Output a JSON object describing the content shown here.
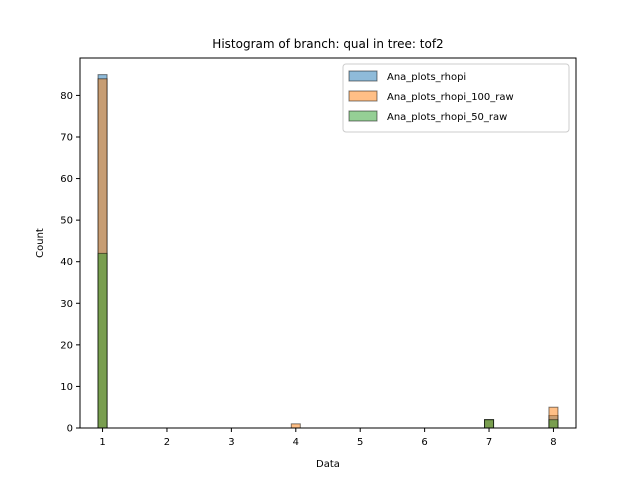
{
  "chart_data": {
    "type": "bar",
    "title": "Histogram of branch: qual in tree: tof2",
    "xlabel": "Data",
    "ylabel": "Count",
    "xlim": [
      0.65,
      8.35
    ],
    "ylim": [
      0,
      89
    ],
    "xticks": [
      1,
      2,
      3,
      4,
      5,
      6,
      7,
      8
    ],
    "yticks": [
      0,
      10,
      20,
      30,
      40,
      50,
      60,
      70,
      80
    ],
    "bin_width": 0.14,
    "legend_position": "top-right",
    "grid": false,
    "series": [
      {
        "name": "Ana_plots_rhopi",
        "color": "#1f77b4",
        "bars": [
          {
            "x": 1.0,
            "value": 85
          },
          {
            "x": 7.0,
            "value": 2
          },
          {
            "x": 8.0,
            "value": 3
          }
        ]
      },
      {
        "name": "Ana_plots_rhopi_100_raw",
        "color": "#ff7f0e",
        "bars": [
          {
            "x": 1.0,
            "value": 84
          },
          {
            "x": 4.0,
            "value": 1
          },
          {
            "x": 7.0,
            "value": 2
          },
          {
            "x": 8.0,
            "value": 5
          }
        ]
      },
      {
        "name": "Ana_plots_rhopi_50_raw",
        "color": "#2ca02c",
        "bars": [
          {
            "x": 1.0,
            "value": 42
          },
          {
            "x": 7.0,
            "value": 2
          },
          {
            "x": 8.0,
            "value": 2
          }
        ]
      }
    ]
  }
}
